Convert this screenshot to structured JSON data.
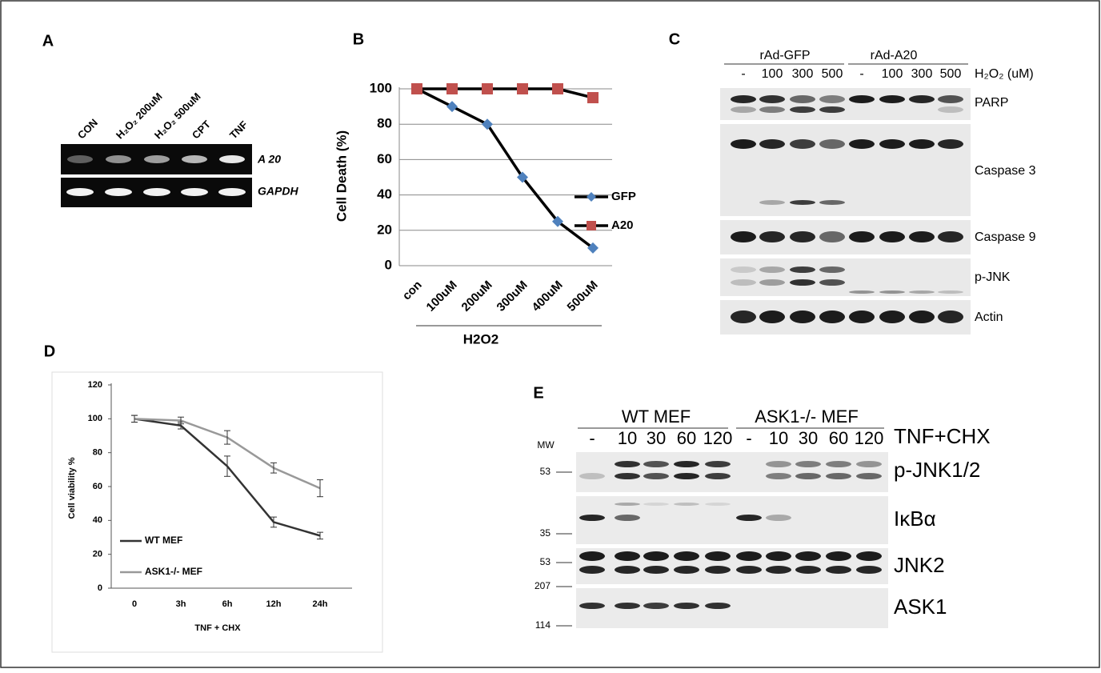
{
  "panel_labels": [
    "A",
    "B",
    "C",
    "D",
    "E"
  ],
  "gel_a": {
    "lanes": [
      "CON",
      "H₂O₂ 200uM",
      "H₂O₂ 500uM",
      "CPT",
      "TNF"
    ],
    "rows": [
      "A 20",
      "GAPDH"
    ]
  },
  "gel_c": {
    "groups": [
      "rAd-GFP",
      "rAd-A20"
    ],
    "lanes": [
      "-",
      "100",
      "300",
      "500",
      "-",
      "100",
      "300",
      "500"
    ],
    "treatment": "H₂O₂ (uM)",
    "rows": [
      "PARP",
      "Caspase 3",
      "Caspase 9",
      "p-JNK",
      "Actin"
    ]
  },
  "gel_e": {
    "groups": [
      "WT MEF",
      "ASK1-/- MEF"
    ],
    "lanes": [
      "-",
      "10",
      "30",
      "60",
      "120",
      "-",
      "10",
      "30",
      "60",
      "120"
    ],
    "treatment": "TNF+CHX",
    "mw_title": "MW",
    "mw": [
      "53",
      "35",
      "53",
      "207",
      "114"
    ],
    "rows": [
      "p-JNK1/2",
      "IκBα",
      "JNK2",
      "ASK1"
    ]
  },
  "chart_data": [
    {
      "type": "line",
      "y_label": "Cell Death (%)",
      "x_label": "H2O2",
      "categories": [
        "con",
        "100uM",
        "200uM",
        "300uM",
        "400uM",
        "500uM"
      ],
      "series": [
        {
          "name": "GFP",
          "color": "#4f81bd",
          "marker": "diamond",
          "values": [
            100,
            90,
            80,
            50,
            25,
            10
          ]
        },
        {
          "name": "A20",
          "color": "#c0504d",
          "marker": "square",
          "values": [
            100,
            100,
            100,
            100,
            100,
            95
          ]
        }
      ],
      "ylim": [
        0,
        100
      ],
      "yticks": [
        0,
        20,
        40,
        60,
        80,
        100
      ],
      "grid": true
    },
    {
      "type": "line",
      "y_label": "Cell viability %",
      "x_label": "TNF + CHX",
      "categories": [
        "0",
        "3h",
        "6h",
        "12h",
        "24h"
      ],
      "series": [
        {
          "name": "WT MEF",
          "color": "#333333",
          "values": [
            100,
            96,
            72,
            39,
            31
          ],
          "errors": [
            2,
            2,
            6,
            3,
            2
          ]
        },
        {
          "name": "ASK1-/- MEF",
          "color": "#999999",
          "values": [
            100,
            99,
            89,
            71,
            59
          ],
          "errors": [
            2,
            2,
            4,
            3,
            5
          ]
        }
      ],
      "ylim": [
        0,
        120
      ],
      "yticks": [
        0,
        20,
        40,
        60,
        80,
        100,
        120
      ],
      "grid": false
    }
  ]
}
